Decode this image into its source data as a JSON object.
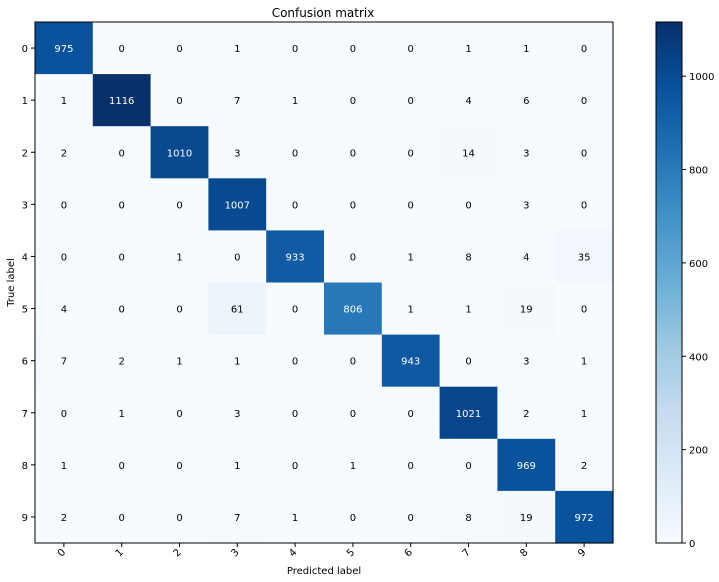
{
  "chart_data": {
    "type": "heatmap",
    "title": "Confusion matrix",
    "xlabel": "Predicted label",
    "ylabel": "True label",
    "x_categories": [
      "0",
      "1",
      "2",
      "3",
      "4",
      "5",
      "6",
      "7",
      "8",
      "9"
    ],
    "y_categories": [
      "0",
      "1",
      "2",
      "3",
      "4",
      "5",
      "6",
      "7",
      "8",
      "9"
    ],
    "matrix": [
      [
        975,
        0,
        0,
        1,
        0,
        0,
        0,
        1,
        1,
        0
      ],
      [
        1,
        1116,
        0,
        7,
        1,
        0,
        0,
        4,
        6,
        0
      ],
      [
        2,
        0,
        1010,
        3,
        0,
        0,
        0,
        14,
        3,
        0
      ],
      [
        0,
        0,
        0,
        1007,
        0,
        0,
        0,
        0,
        3,
        0
      ],
      [
        0,
        0,
        1,
        0,
        933,
        0,
        1,
        8,
        4,
        35
      ],
      [
        4,
        0,
        0,
        61,
        0,
        806,
        1,
        1,
        19,
        0
      ],
      [
        7,
        2,
        1,
        1,
        0,
        0,
        943,
        0,
        3,
        1
      ],
      [
        0,
        1,
        0,
        3,
        0,
        0,
        0,
        1021,
        2,
        1
      ],
      [
        1,
        0,
        0,
        1,
        0,
        1,
        0,
        0,
        969,
        2
      ],
      [
        2,
        0,
        0,
        7,
        1,
        0,
        0,
        8,
        19,
        972
      ]
    ],
    "colormap": "Blues",
    "colorbar": {
      "range": [
        0,
        1116
      ],
      "ticks": [
        0,
        200,
        400,
        600,
        800,
        1000
      ],
      "colors": [
        "#f7fbff",
        "#deebf7",
        "#c6dbef",
        "#9ecae1",
        "#6baed6",
        "#4292c6",
        "#2171b5",
        "#08519c",
        "#08306b"
      ]
    },
    "text_threshold": 558,
    "text_colors": {
      "light": "#ffffff",
      "dark": "#000000"
    },
    "grid": false
  }
}
